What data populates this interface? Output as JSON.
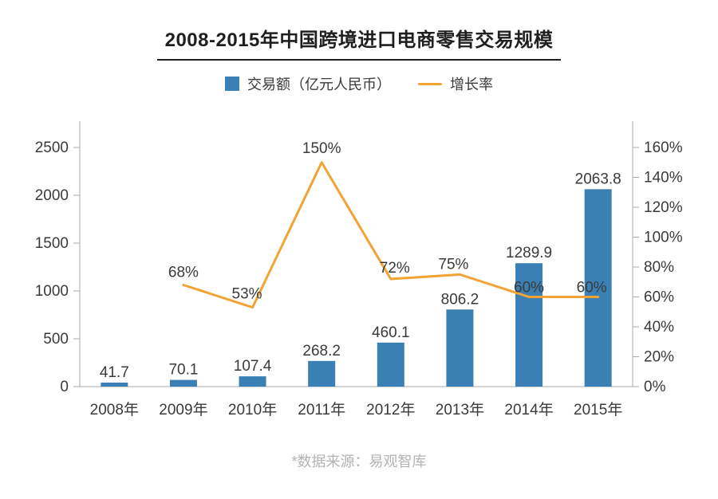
{
  "footer": "*数据来源：易观智库",
  "colors": {
    "bar": "#3B80B5",
    "line": "#F2A333",
    "text": "#3A3A3A",
    "axis": "#AAAAAA",
    "title": "#1F1F1F",
    "footer_text": "#B3B3B3",
    "background": "#FFFFFF"
  },
  "chart_data": {
    "type": "combo",
    "title": "2008-2015年中国跨境进口电商零售交易规模",
    "categories": [
      "2008年",
      "2009年",
      "2010年",
      "2011年",
      "2012年",
      "2013年",
      "2014年",
      "2015年"
    ],
    "series": [
      {
        "name": "交易额（亿元人民币）",
        "type": "bar",
        "axis": "left",
        "values": [
          41.7,
          70.1,
          107.4,
          268.2,
          460.1,
          806.2,
          1289.9,
          2063.8
        ],
        "data_labels": [
          "41.7",
          "70.1",
          "107.4",
          "268.2",
          "460.1",
          "806.2",
          "1289.9",
          "2063.8"
        ]
      },
      {
        "name": "增长率",
        "type": "line",
        "axis": "right",
        "values": [
          null,
          68,
          53,
          150,
          72,
          75,
          60,
          60
        ],
        "data_labels": [
          null,
          "68%",
          "53%",
          "150%",
          "72%",
          "75%",
          "60%",
          "60%"
        ]
      }
    ],
    "y_left": {
      "min": 0,
      "max": 2500,
      "tick_labels": [
        "0",
        "500",
        "1000",
        "1500",
        "2000",
        "2500"
      ]
    },
    "y_right": {
      "min": 0,
      "max": 160,
      "tick_labels": [
        "0%",
        "20%",
        "40%",
        "60%",
        "80%",
        "100%",
        "120%",
        "140%",
        "160%"
      ]
    },
    "grid": false,
    "legend_position": "top"
  }
}
